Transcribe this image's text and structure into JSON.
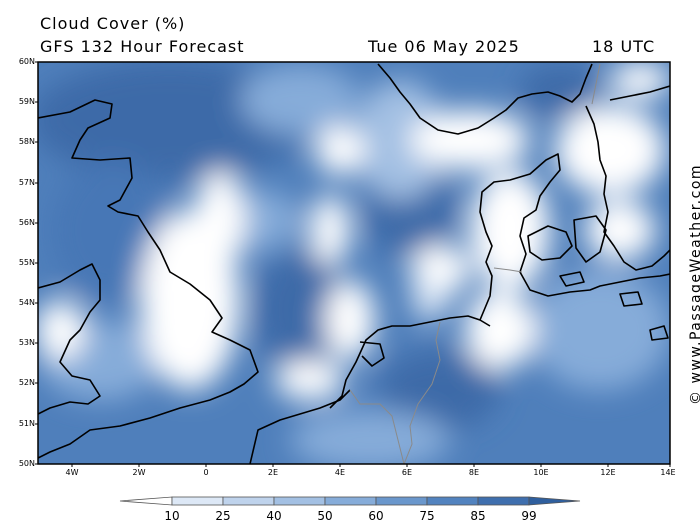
{
  "title": {
    "line1": "Cloud Cover (%)",
    "model": "GFS 132 Hour Forecast",
    "date": "Tue 06 May 2025",
    "time": "18 UTC"
  },
  "credit": "© www.PassageWeather.com",
  "map": {
    "lat_labels": [
      "60N",
      "59N",
      "58N",
      "57N",
      "56N",
      "55N",
      "54N",
      "53N",
      "52N",
      "51N",
      "50N"
    ],
    "lon_labels": [
      "4W",
      "2W",
      "0",
      "2E",
      "4E",
      "6E",
      "8E",
      "10E",
      "12E",
      "14E"
    ]
  },
  "legend": {
    "values": [
      "10",
      "25",
      "40",
      "50",
      "60",
      "75",
      "85",
      "99"
    ],
    "colors": [
      "#ffffff",
      "#dde8f6",
      "#bfd3ec",
      "#a3c0e3",
      "#86acd9",
      "#6a97cc",
      "#5283bf",
      "#3f6fae",
      "#2f5f9e"
    ]
  }
}
